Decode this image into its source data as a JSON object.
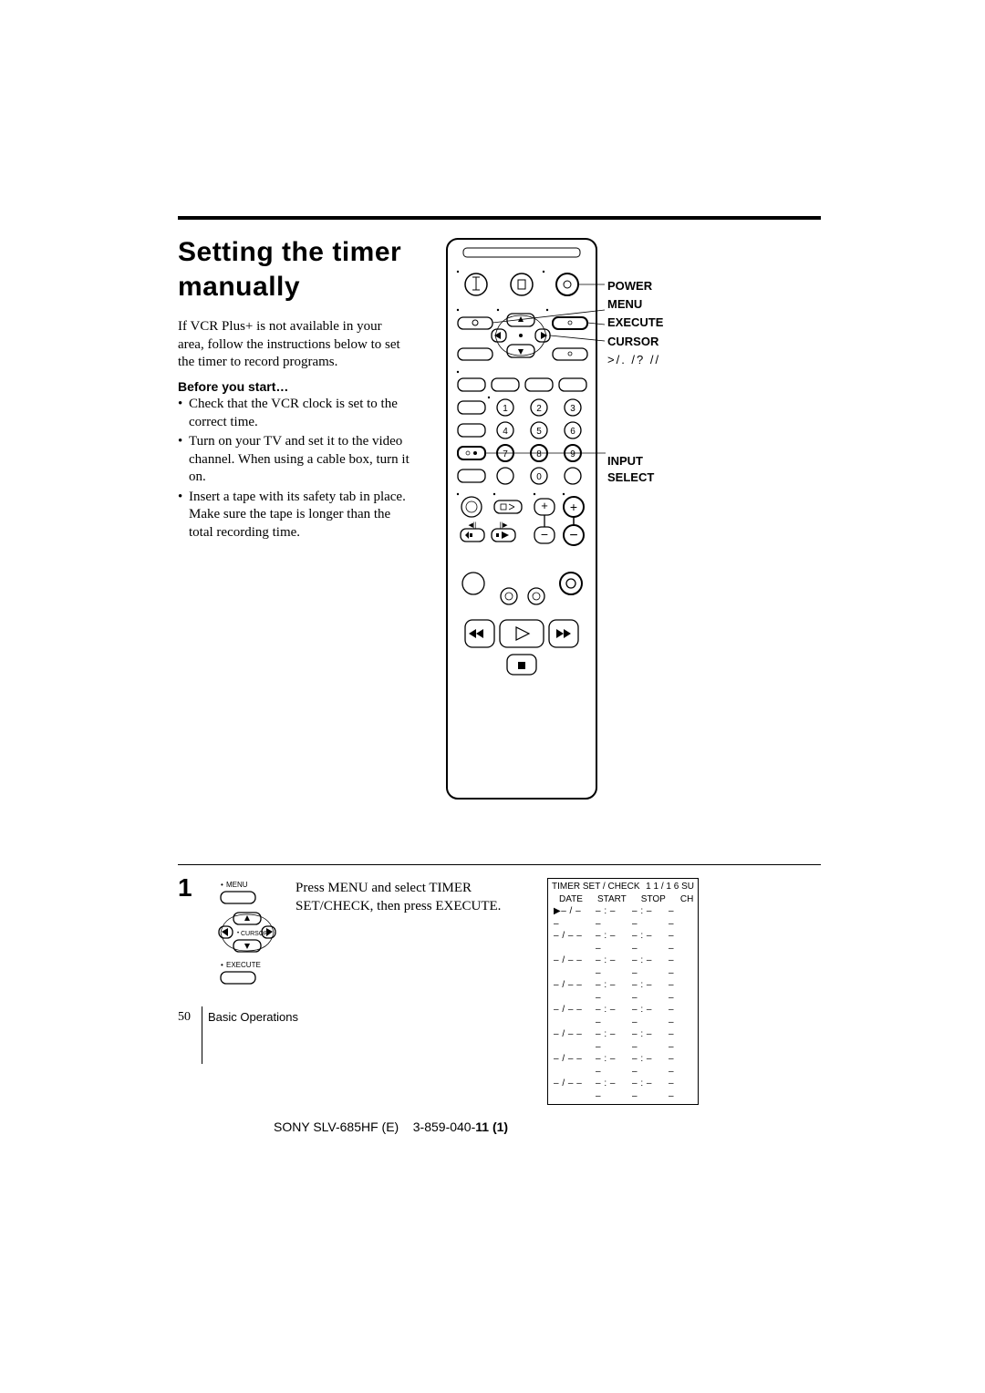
{
  "title_line1": "Setting the timer",
  "title_line2": "manually",
  "intro": "If VCR Plus+ is not available in your area, follow the instructions below to set the timer to record programs.",
  "before_you_start": "Before you start…",
  "bullets": [
    "Check that the VCR clock is set to the correct time.",
    "Turn on your TV and set it to the video channel. When using a cable box, turn it on.",
    "Insert a tape with its safety tab in place. Make sure the tape is longer than the total recording time."
  ],
  "remote_labels": {
    "power": "POWER",
    "menu": "MENU",
    "execute": "EXECUTE",
    "cursor": "CURSOR",
    "cursor_arrows": ">/. /? //",
    "input": "INPUT",
    "select": "SELECT"
  },
  "step": {
    "number": "1",
    "menu_label": "MENU",
    "cursor_label": "CURSOR",
    "execute_label": "EXECUTE",
    "text": "Press MENU and select TIMER SET/CHECK, then press EXECUTE."
  },
  "timer_table": {
    "header_left": "TIMER SET / CHECK",
    "header_right": "1 1 / 1 6",
    "header_day": "SU",
    "col_date": "DATE",
    "col_start": "START",
    "col_stop": "STOP",
    "col_ch": "CH",
    "rows": [
      {
        "date": "▶– / – –",
        "start": "– : – –",
        "stop": "– : – –",
        "ch": "– –"
      },
      {
        "date": "  – / – –",
        "start": "– : – –",
        "stop": "– : – –",
        "ch": "– –"
      },
      {
        "date": "  – / – –",
        "start": "– : – –",
        "stop": "– : – –",
        "ch": "– –"
      },
      {
        "date": "  – / – –",
        "start": "– : – –",
        "stop": "– : – –",
        "ch": "– –"
      },
      {
        "date": "  – / – –",
        "start": "– : – –",
        "stop": "– : – –",
        "ch": "– –"
      },
      {
        "date": "  – / – –",
        "start": "– : – –",
        "stop": "– : – –",
        "ch": "– –"
      },
      {
        "date": "  – / – –",
        "start": "– : – –",
        "stop": "– : – –",
        "ch": "– –"
      },
      {
        "date": "  – / – –",
        "start": "– : – –",
        "stop": "– : – –",
        "ch": "– –"
      }
    ]
  },
  "page_number": "50",
  "page_section": "Basic Operations",
  "footer_model": "SONY  SLV-685HF (E)",
  "footer_code": "3-859-040-",
  "footer_bold": "11 (1)",
  "colors": {
    "text": "#000000",
    "background": "#ffffff",
    "rule": "#000000"
  }
}
